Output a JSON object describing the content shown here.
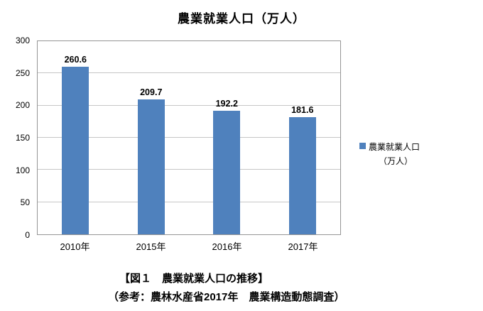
{
  "chart_data": {
    "type": "bar",
    "title": "農業就業人口（万人）",
    "categories": [
      "2010年",
      "2015年",
      "2016年",
      "2017年"
    ],
    "values": [
      260.6,
      209.7,
      192.2,
      181.6
    ],
    "value_labels": [
      "260.6",
      "209.7",
      "192.2",
      "181.6"
    ],
    "xlabel": "",
    "ylabel": "",
    "ylim": [
      0,
      300
    ],
    "yticks": [
      0,
      50,
      100,
      150,
      200,
      250,
      300
    ],
    "grid": true,
    "legend": [
      "農業就業人口（万人）"
    ],
    "legend_position": "right",
    "bar_color": "#4F81BD"
  },
  "legend": {
    "line1": "農業就業人口",
    "line2": "（万人）",
    "marker_color": "#4F81BD"
  },
  "caption": {
    "line1": "【図１　農業就業人口の推移】",
    "line2": "（参考：農林水産省2017年　農業構造動態調査）"
  }
}
